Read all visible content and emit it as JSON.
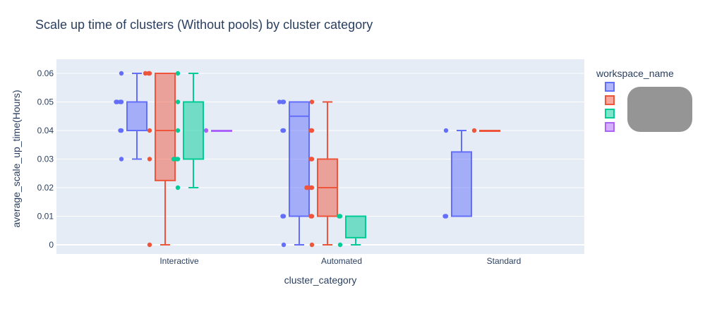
{
  "chart_data": {
    "type": "box",
    "title": "Scale up time of clusters (Without pools) by cluster category",
    "xlabel": "cluster_category",
    "ylabel": "average_scale_up_time(Hours)",
    "categories": [
      "Interactive",
      "Automated",
      "Standard"
    ],
    "ylim": [
      -0.0035,
      0.0625
    ],
    "yticks": [
      0,
      0.01,
      0.02,
      0.03,
      0.04,
      0.05,
      0.06
    ],
    "ytick_labels": [
      "0",
      "0.01",
      "0.02",
      "0.03",
      "0.04",
      "0.05",
      "0.06"
    ],
    "grid": true,
    "legend": {
      "title": "workspace_name",
      "placement": "right"
    },
    "series": [
      {
        "color": "#636efa",
        "boxes": [
          {
            "category": "Interactive",
            "min": 0.03,
            "q1": 0.04,
            "median": 0.05,
            "q3": 0.05,
            "max": 0.06,
            "points": [
              0.06,
              0.05,
              0.05,
              0.05,
              0.05,
              0.04,
              0.04,
              0.03
            ]
          },
          {
            "category": "Automated",
            "min": 0,
            "q1": 0.01,
            "median": 0.045,
            "q3": 0.05,
            "max": 0.05,
            "points": [
              0.05,
              0.05,
              0.05,
              0.04,
              0.04,
              0.01,
              0.01,
              0
            ]
          },
          {
            "category": "Standard",
            "min": 0.01,
            "q1": 0.01,
            "median": 0.01,
            "q3": 0.0325,
            "max": 0.04,
            "points": [
              0.04,
              0.01,
              0.01
            ]
          }
        ]
      },
      {
        "color": "#ef553b",
        "boxes": [
          {
            "category": "Interactive",
            "min": 0,
            "q1": 0.0225,
            "median": 0.04,
            "q3": 0.06,
            "max": 0.06,
            "points": [
              0.06,
              0.06,
              0.06,
              0.04,
              0.03,
              0
            ]
          },
          {
            "category": "Automated",
            "min": 0,
            "q1": 0.01,
            "median": 0.02,
            "q3": 0.03,
            "max": 0.05,
            "points": [
              0.05,
              0.04,
              0.04,
              0.03,
              0.03,
              0.02,
              0.02,
              0.02,
              0.02,
              0.01,
              0.01,
              0
            ]
          },
          {
            "category": "Standard",
            "min": 0.04,
            "q1": 0.04,
            "median": 0.04,
            "q3": 0.04,
            "max": 0.04,
            "points": [
              0.04
            ]
          }
        ]
      },
      {
        "color": "#00cc96",
        "boxes": [
          {
            "category": "Interactive",
            "min": 0.02,
            "q1": 0.03,
            "median": 0.03,
            "q3": 0.05,
            "max": 0.06,
            "points": [
              0.06,
              0.05,
              0.04,
              0.03,
              0.03,
              0.03,
              0.02
            ]
          },
          {
            "category": "Automated",
            "min": 0,
            "q1": 0.0025,
            "median": 0.01,
            "q3": 0.01,
            "max": 0.01,
            "points": [
              0.01,
              0.01,
              0
            ]
          }
        ]
      },
      {
        "color": "#ab63fa",
        "boxes": [
          {
            "category": "Interactive",
            "min": 0.04,
            "q1": 0.04,
            "median": 0.04,
            "q3": 0.04,
            "max": 0.04,
            "points": [
              0.04
            ]
          }
        ]
      }
    ]
  }
}
